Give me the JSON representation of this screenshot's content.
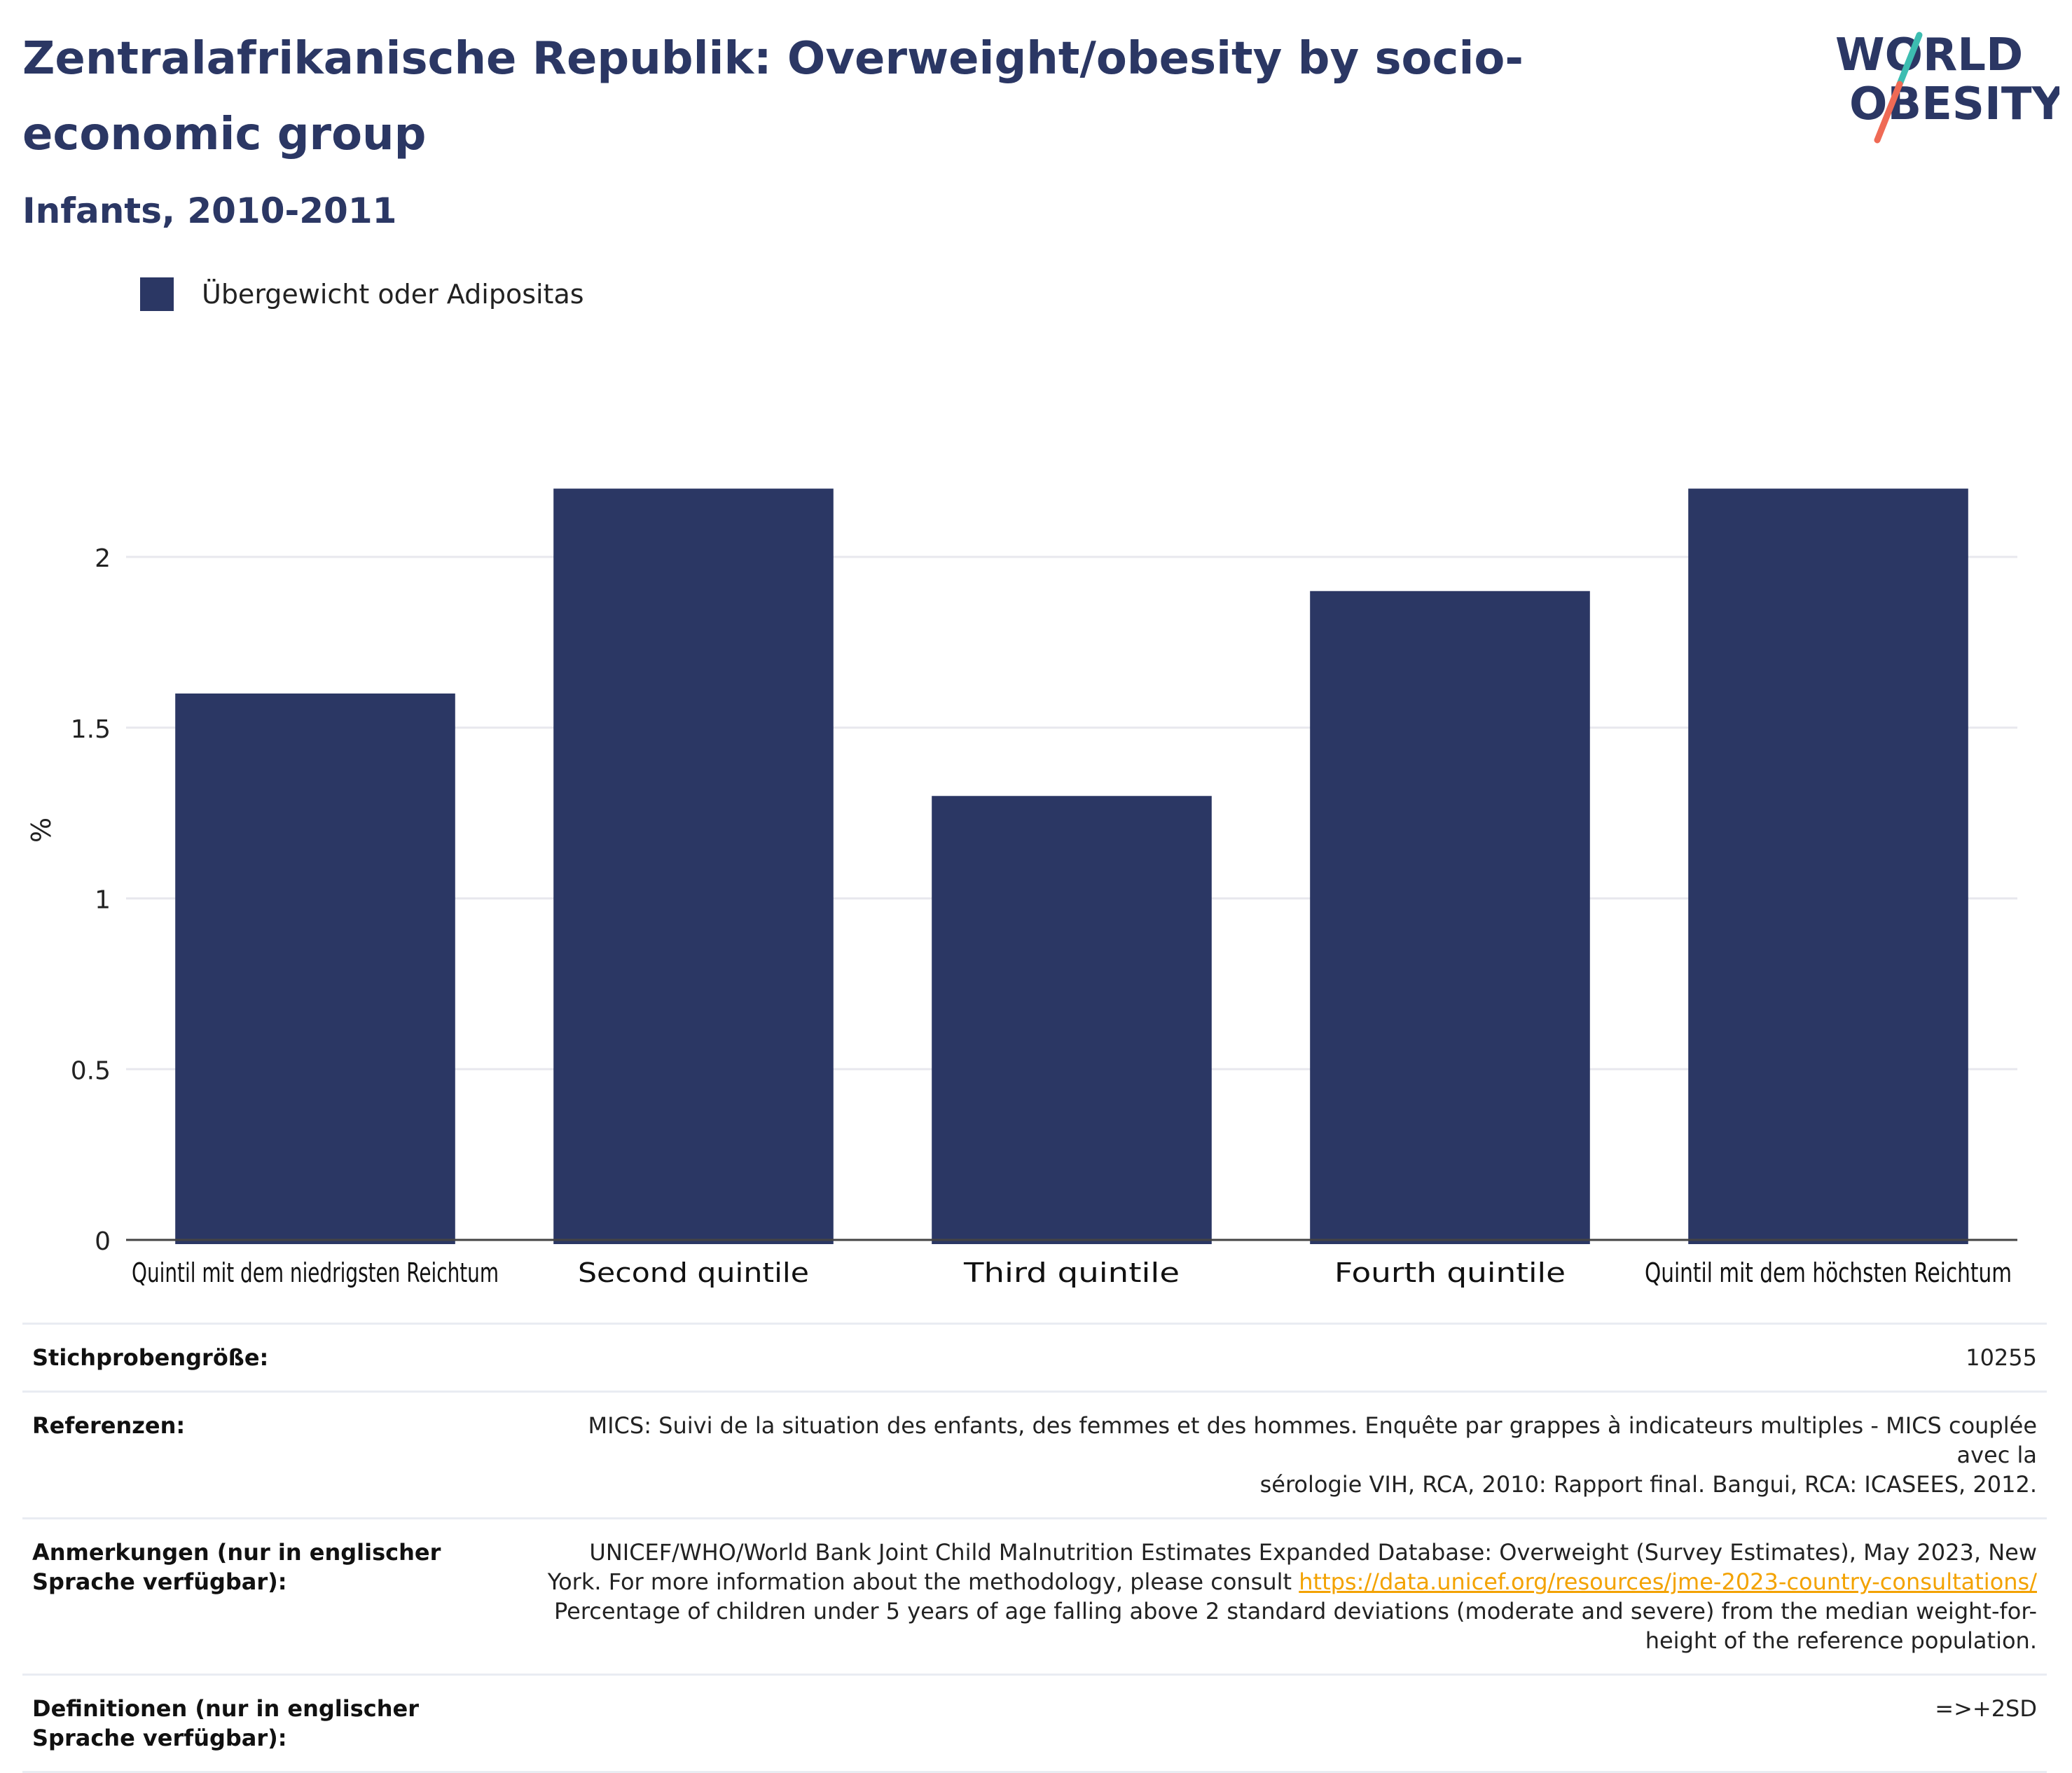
{
  "header": {
    "title": "Zentralafrikanische Republik: Overweight/obesity by socio-economic group",
    "subtitle": "Infants, 2010-2011"
  },
  "logo": {
    "line1": "WORLD",
    "line2": "OBESITY",
    "accent_colors": [
      "#3dbdb1",
      "#ef6a55"
    ]
  },
  "chart_data": {
    "type": "bar",
    "categories": [
      "Quintil mit dem niedrigsten Reichtum",
      "Second quintile",
      "Third quintile",
      "Fourth quintile",
      "Quintil mit dem höchsten Reichtum"
    ],
    "series": [
      {
        "name": "Übergewicht oder Adipositas",
        "values": [
          1.6,
          2.2,
          1.3,
          1.9,
          2.2
        ],
        "color": "#2b3764"
      }
    ],
    "ylabel": "%",
    "ylim": [
      0,
      2.4
    ],
    "yticks": [
      0,
      0.5,
      1,
      1.5,
      2
    ],
    "ytick_labels": [
      "0",
      "0.5",
      "1",
      "1.5",
      "2"
    ],
    "grid": true,
    "legend_position": "top-left"
  },
  "info": {
    "sample_size": {
      "label": "Stichprobengröße:",
      "value": "10255"
    },
    "references": {
      "label": "Referenzen:",
      "line1": "MICS: Suivi de la situation des enfants, des femmes et des hommes. Enquête par grappes à indicateurs multiples - MICS couplée avec la",
      "line2": "sérologie VIH, RCA, 2010: Rapport final. Bangui, RCA: ICASEES, 2012."
    },
    "notes": {
      "label": "Anmerkungen (nur in englischer Sprache verfügbar):",
      "line1": "UNICEF/WHO/World Bank Joint Child Malnutrition Estimates Expanded Database: Overweight (Survey Estimates), May 2023, New",
      "line2_prefix": "York. For more information about the methodology, please consult ",
      "link": "https://data.unicef.org/resources/jme-2023-country-consultations/",
      "line3": "Percentage of children under 5 years of age falling above 2 standard deviations (moderate and severe) from the median weight-for-",
      "line4": "height of the reference population."
    },
    "definitions": {
      "label": "Definitionen (nur in englischer Sprache verfügbar):",
      "value": "=>+2SD"
    }
  }
}
